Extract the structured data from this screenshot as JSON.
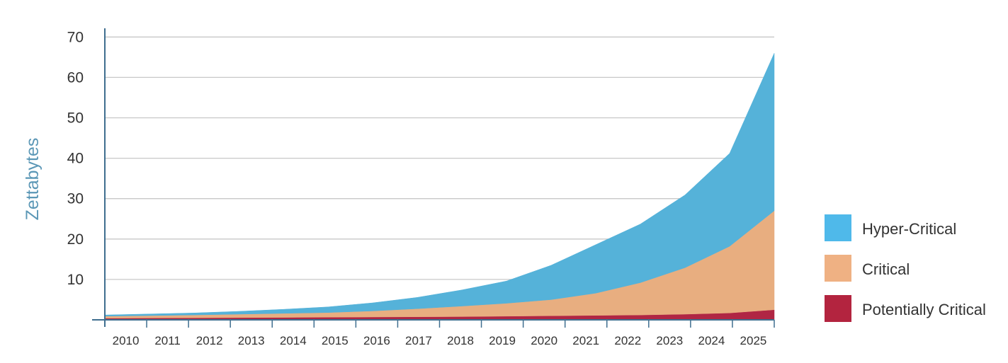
{
  "chart_data": {
    "type": "area",
    "stacked": true,
    "xlabel": "",
    "ylabel": "Zettabytes",
    "ylim": [
      0,
      70
    ],
    "yticks": [
      10,
      20,
      30,
      40,
      50,
      60,
      70
    ],
    "grid": true,
    "legend_position": "right",
    "categories": [
      "2010",
      "2011",
      "2012",
      "2013",
      "2014",
      "2015",
      "2016",
      "2017",
      "2018",
      "2019",
      "2020",
      "2021",
      "2022",
      "2023",
      "2024",
      "2025"
    ],
    "series": [
      {
        "name": "Potentially Critical",
        "color": "#b02644",
        "values": [
          0.4,
          0.45,
          0.5,
          0.55,
          0.6,
          0.65,
          0.7,
          0.75,
          0.8,
          0.9,
          1.0,
          1.1,
          1.2,
          1.4,
          1.7,
          2.5
        ]
      },
      {
        "name": "Critical",
        "color": "#e8ae80",
        "values": [
          0.5,
          0.6,
          0.7,
          0.85,
          1.0,
          1.15,
          1.5,
          2.0,
          2.6,
          3.2,
          4.0,
          5.5,
          8.0,
          11.5,
          16.5,
          24.5
        ]
      },
      {
        "name": "Hyper-Critical",
        "color": "#55b2d9",
        "values": [
          0.3,
          0.4,
          0.5,
          0.7,
          1.0,
          1.4,
          2.0,
          2.8,
          4.0,
          5.5,
          8.5,
          12.0,
          14.5,
          18.0,
          23.0,
          39.0
        ]
      }
    ],
    "legend": [
      {
        "label": "Hyper-Critical",
        "color": "#4fb9ea"
      },
      {
        "label": "Critical",
        "color": "#efb183"
      },
      {
        "label": "Potentially Critical",
        "color": "#b3243f"
      }
    ]
  }
}
